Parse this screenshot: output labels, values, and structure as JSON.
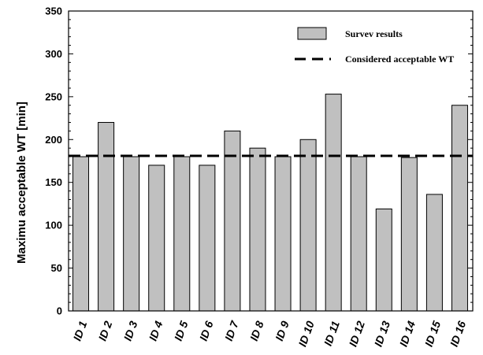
{
  "chart_data": {
    "type": "bar",
    "categories": [
      "ID 1",
      "ID 2",
      "ID 3",
      "ID 4",
      "ID 5",
      "ID 6",
      "ID 7",
      "ID 8",
      "ID 9",
      "ID 10",
      "ID 11",
      "ID 12",
      "ID 13",
      "ID 14",
      "ID 15",
      "ID 16"
    ],
    "series": [
      {
        "name": "Survev results",
        "values": [
          180,
          220,
          180,
          170,
          180,
          170,
          210,
          190,
          180,
          200,
          253,
          180,
          119,
          179,
          136,
          240
        ],
        "color": "#c0c0c0"
      }
    ],
    "reference_line": {
      "name": "Considered acceptable WT",
      "value": 181,
      "style": "dashed",
      "color": "#000000"
    },
    "title": "",
    "xlabel": "",
    "ylabel": "Maximu acceptable WT [min]",
    "ylim": [
      0,
      350
    ],
    "yticks": [
      "0",
      "50",
      "100",
      "150",
      "200",
      "250",
      "300",
      "350"
    ],
    "grid": false,
    "legend_position": "top-right"
  }
}
